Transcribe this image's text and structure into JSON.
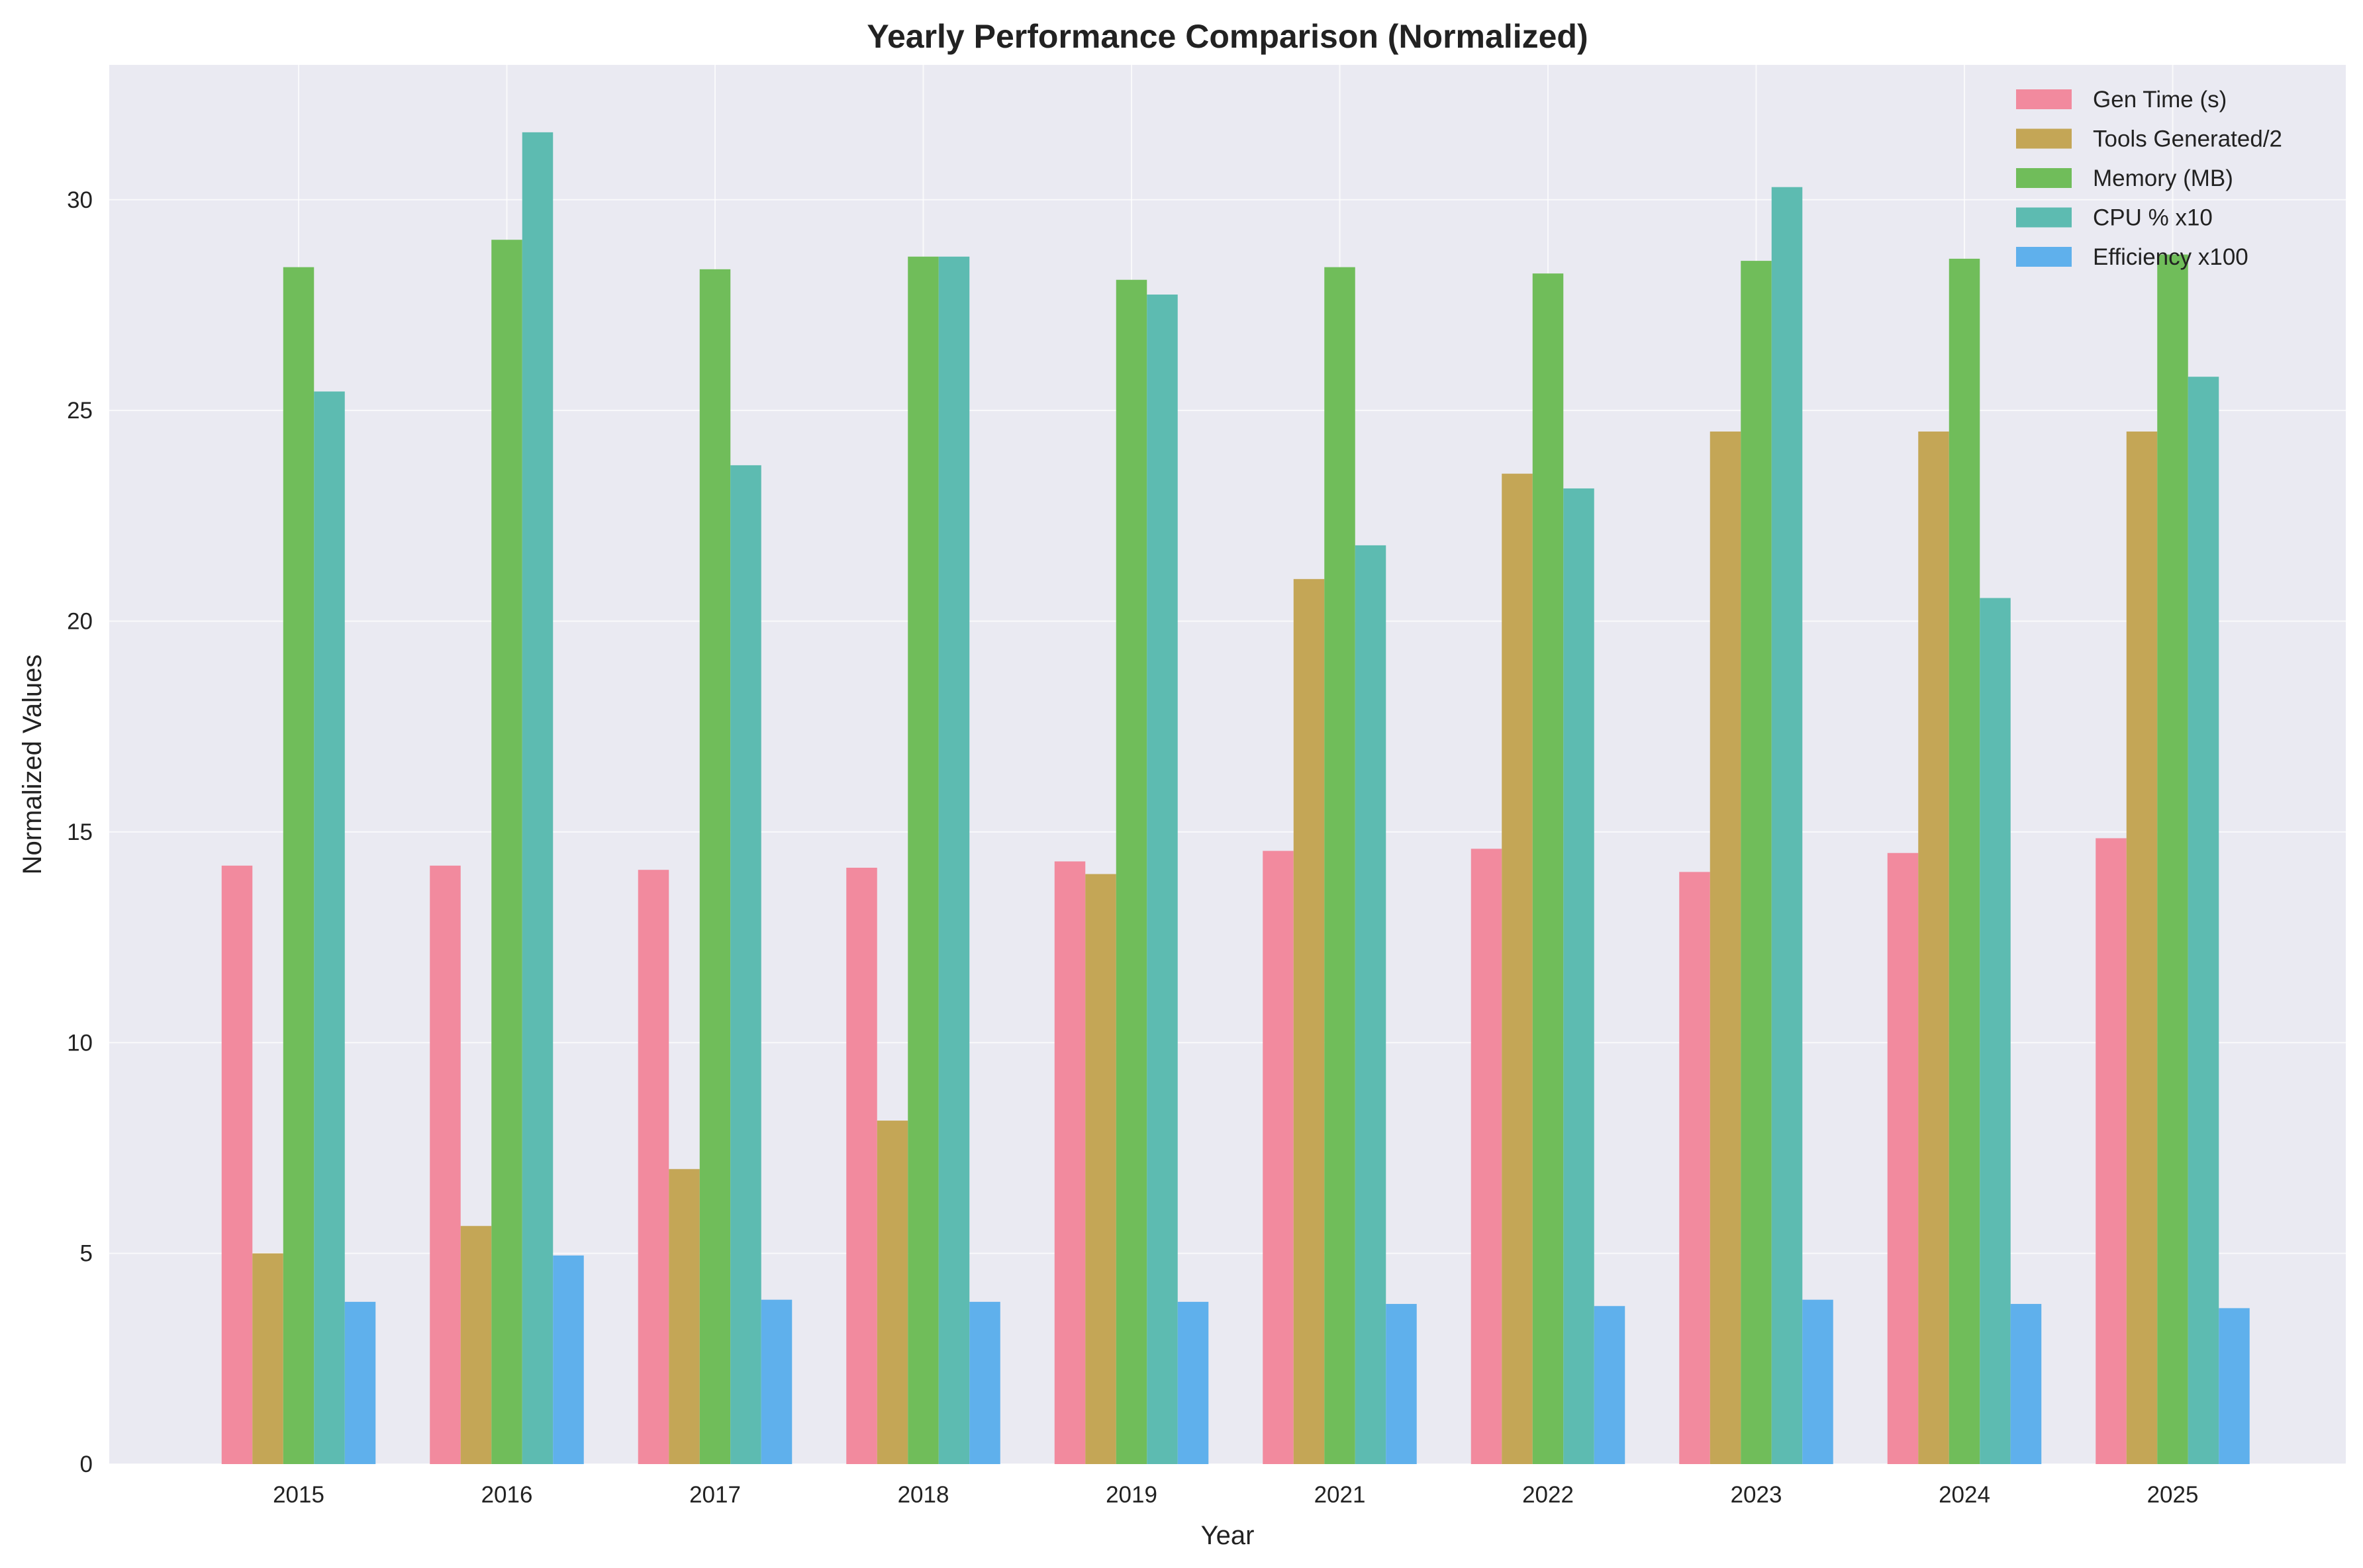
{
  "chart_data": {
    "type": "bar",
    "title": "Yearly Performance Comparison (Normalized)",
    "xlabel": "Year",
    "ylabel": "Normalized Values",
    "ylim": [
      0,
      33.2
    ],
    "yticks": [
      0,
      5,
      10,
      15,
      20,
      25,
      30
    ],
    "grid": true,
    "legend_position": "top-right",
    "categories": [
      "2015",
      "2016",
      "2017",
      "2018",
      "2019",
      "2021",
      "2022",
      "2023",
      "2024",
      "2025"
    ],
    "series": [
      {
        "name": "Gen Time (s)",
        "color": "#f28a9e",
        "values": [
          14.2,
          14.2,
          14.1,
          14.15,
          14.3,
          14.55,
          14.6,
          14.05,
          14.5,
          14.85
        ]
      },
      {
        "name": "Tools Generated/2",
        "color": "#c4a656",
        "values": [
          5.0,
          5.65,
          7.0,
          8.15,
          14.0,
          21.0,
          23.5,
          24.5,
          24.5,
          24.5
        ]
      },
      {
        "name": "Memory (MB)",
        "color": "#70bd5a",
        "values": [
          28.4,
          29.05,
          28.35,
          28.65,
          28.1,
          28.4,
          28.25,
          28.55,
          28.6,
          28.7
        ]
      },
      {
        "name": "CPU % x10",
        "color": "#5dbbb1",
        "values": [
          25.45,
          31.6,
          23.7,
          28.65,
          27.75,
          21.8,
          23.15,
          30.3,
          20.55,
          25.8
        ]
      },
      {
        "name": "Efficiency x100",
        "color": "#5fb0ec",
        "values": [
          3.85,
          4.95,
          3.9,
          3.85,
          3.85,
          3.8,
          3.75,
          3.9,
          3.8,
          3.7
        ]
      }
    ]
  }
}
